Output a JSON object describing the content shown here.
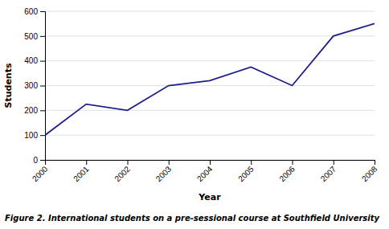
{
  "chart_data": {
    "type": "line",
    "x": [
      2000,
      2001,
      2002,
      2003,
      2004,
      2005,
      2006,
      2007,
      2008
    ],
    "values": [
      100,
      225,
      200,
      300,
      320,
      375,
      300,
      500,
      550
    ],
    "color": "#1F1F8B",
    "x_label": "Year",
    "y_label": "Students",
    "caption": "Figure 2. International students on a pre-sessional course at Southfield University",
    "xlim": [
      2000,
      2008
    ],
    "xticks": [
      2000,
      2001,
      2002,
      2003,
      2004,
      2005,
      2006,
      2007,
      2008
    ],
    "ylim": [
      0,
      600
    ],
    "yticks": [
      0,
      100,
      200,
      300,
      400,
      500,
      600
    ],
    "grid": true
  }
}
